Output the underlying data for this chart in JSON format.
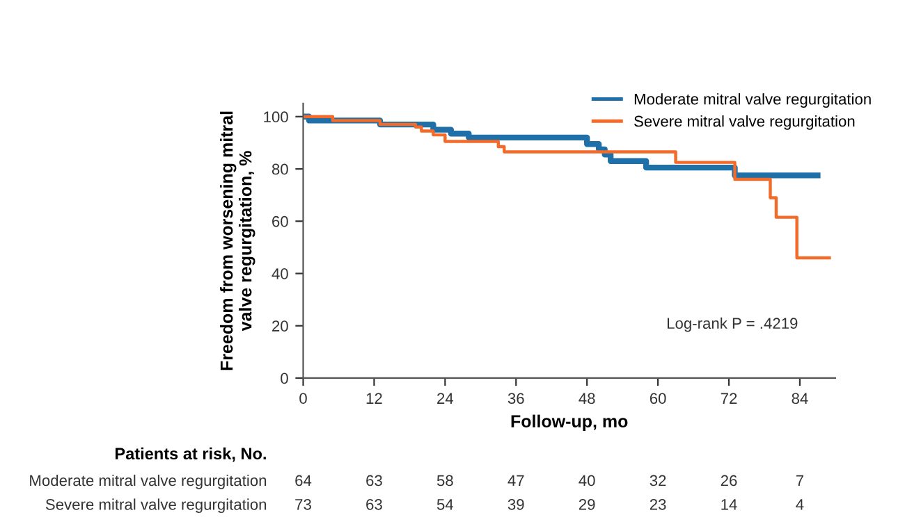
{
  "chart_data": {
    "type": "step",
    "xlabel": "Follow-up, mo",
    "ylabel": "Freedom from worsening mitral\nvalve regurgitation, %",
    "xlim": [
      0,
      90
    ],
    "xticks": [
      0,
      12,
      24,
      36,
      48,
      60,
      72,
      84
    ],
    "ylim": [
      0,
      105
    ],
    "yticks": [
      0,
      20,
      40,
      60,
      80,
      100
    ],
    "grid": false,
    "legend": "top right",
    "series": [
      {
        "name": "Moderate mitral valve regurgitation",
        "color": "#1f6fa8",
        "x": [
          0,
          1,
          13,
          22,
          25,
          28,
          48,
          50,
          51,
          52,
          58,
          73,
          87
        ],
        "values": [
          100,
          98.5,
          97,
          95,
          93.5,
          92,
          89.5,
          87.5,
          85.5,
          83,
          80.5,
          77.5,
          77.5
        ]
      },
      {
        "name": "Severe mitral valve regurgitation",
        "color": "#f26b2a",
        "x": [
          0,
          5,
          13,
          19,
          20,
          22,
          24,
          33,
          34,
          63,
          73,
          79,
          80,
          83.5,
          89
        ],
        "values": [
          100,
          98.5,
          97,
          96,
          94.5,
          93,
          90.5,
          88.5,
          86.5,
          82.5,
          76,
          69,
          61.5,
          46,
          46
        ]
      }
    ],
    "annotations": [
      "Log-rank P = .4219",
      "Patients at risk, No.",
      "Moderate mitral valve regurgitation",
      "64",
      "63",
      "58",
      "47",
      "40",
      "32",
      "26",
      "7",
      "Severe mitral valve regurgitation",
      "73",
      "63",
      "54",
      "39",
      "29",
      "23",
      "14",
      "4"
    ]
  }
}
